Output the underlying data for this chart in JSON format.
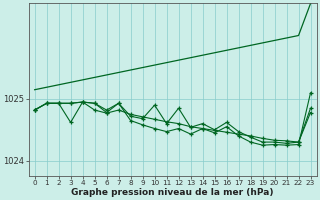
{
  "bg_color": "#cceee8",
  "grid_color": "#88cccc",
  "line_color": "#006622",
  "xlabel": "Graphe pression niveau de la mer (hPa)",
  "ylim": [
    1023.75,
    1026.55
  ],
  "yticks": [
    1024,
    1025
  ],
  "xlim": [
    -0.5,
    23.5
  ],
  "series_straight": [
    1025.15,
    1025.19,
    1025.23,
    1025.27,
    1025.31,
    1025.35,
    1025.39,
    1025.43,
    1025.47,
    1025.51,
    1025.55,
    1025.59,
    1025.63,
    1025.67,
    1025.71,
    1025.75,
    1025.79,
    1025.83,
    1025.87,
    1025.91,
    1025.95,
    1025.99,
    1026.03,
    1026.55
  ],
  "series_a": [
    1024.82,
    1024.93,
    1024.93,
    1024.93,
    1024.95,
    1024.93,
    1024.82,
    1024.93,
    1024.72,
    1024.68,
    1024.9,
    1024.6,
    1024.85,
    1024.54,
    1024.6,
    1024.5,
    1024.62,
    1024.47,
    1024.38,
    1024.3,
    1024.3,
    1024.28,
    1024.3,
    1024.78
  ],
  "series_b": [
    1024.82,
    1024.93,
    1024.93,
    1024.62,
    1024.95,
    1024.93,
    1024.78,
    1024.93,
    1024.65,
    1024.58,
    1024.52,
    1024.47,
    1024.52,
    1024.43,
    1024.52,
    1024.45,
    1024.55,
    1024.4,
    1024.3,
    1024.25,
    1024.26,
    1024.25,
    1024.26,
    1025.1
  ],
  "series_c": [
    1024.82,
    1024.93,
    1024.93,
    1024.93,
    1024.95,
    1024.82,
    1024.77,
    1024.82,
    1024.75,
    1024.71,
    1024.67,
    1024.63,
    1024.6,
    1024.55,
    1024.52,
    1024.49,
    1024.46,
    1024.43,
    1024.4,
    1024.36,
    1024.33,
    1024.32,
    1024.3,
    1024.85
  ]
}
